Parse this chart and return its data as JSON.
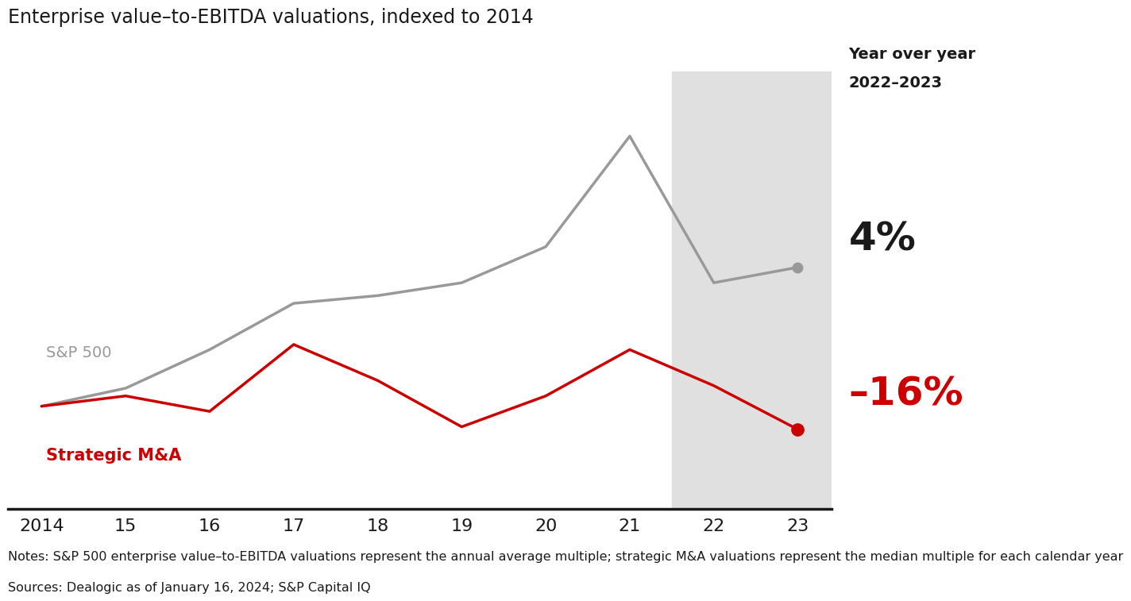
{
  "title": "Enterprise value–to-EBITDA valuations, indexed to 2014",
  "sp500_x": [
    2014,
    2015,
    2016,
    2017,
    2018,
    2019,
    2020,
    2021,
    2022,
    2023
  ],
  "sp500_y": [
    100,
    107,
    122,
    140,
    143,
    148,
    162,
    205,
    148,
    154
  ],
  "ma_x": [
    2014,
    2015,
    2016,
    2017,
    2018,
    2019,
    2020,
    2021,
    2022,
    2023
  ],
  "ma_y": [
    100,
    104,
    98,
    124,
    110,
    92,
    104,
    122,
    108,
    91
  ],
  "sp500_color": "#999999",
  "ma_color": "#cc0000",
  "sp500_label": "S&P 500",
  "ma_label": "Strategic M&A",
  "shade_start": 2021.5,
  "shade_end": 2023.5,
  "shade_color": "#e0e0e0",
  "yoy_label": "Year over year\n2022–2023",
  "sp500_yoy": "4%",
  "ma_yoy": "–16%",
  "ma_yoy_color": "#cc0000",
  "sp500_yoy_color": "#1a1a1a",
  "notes": "Notes: S&P 500 enterprise value–to-EBITDA valuations represent the annual average multiple; strategic M&A valuations represent the median multiple for each calendar year",
  "sources": "Sources: Dealogic as of January 16, 2024; S&P Capital IQ",
  "bg_color": "#ffffff",
  "line_width": 2.5,
  "xlim": [
    2013.6,
    2023.4
  ],
  "ylim": [
    60,
    230
  ]
}
